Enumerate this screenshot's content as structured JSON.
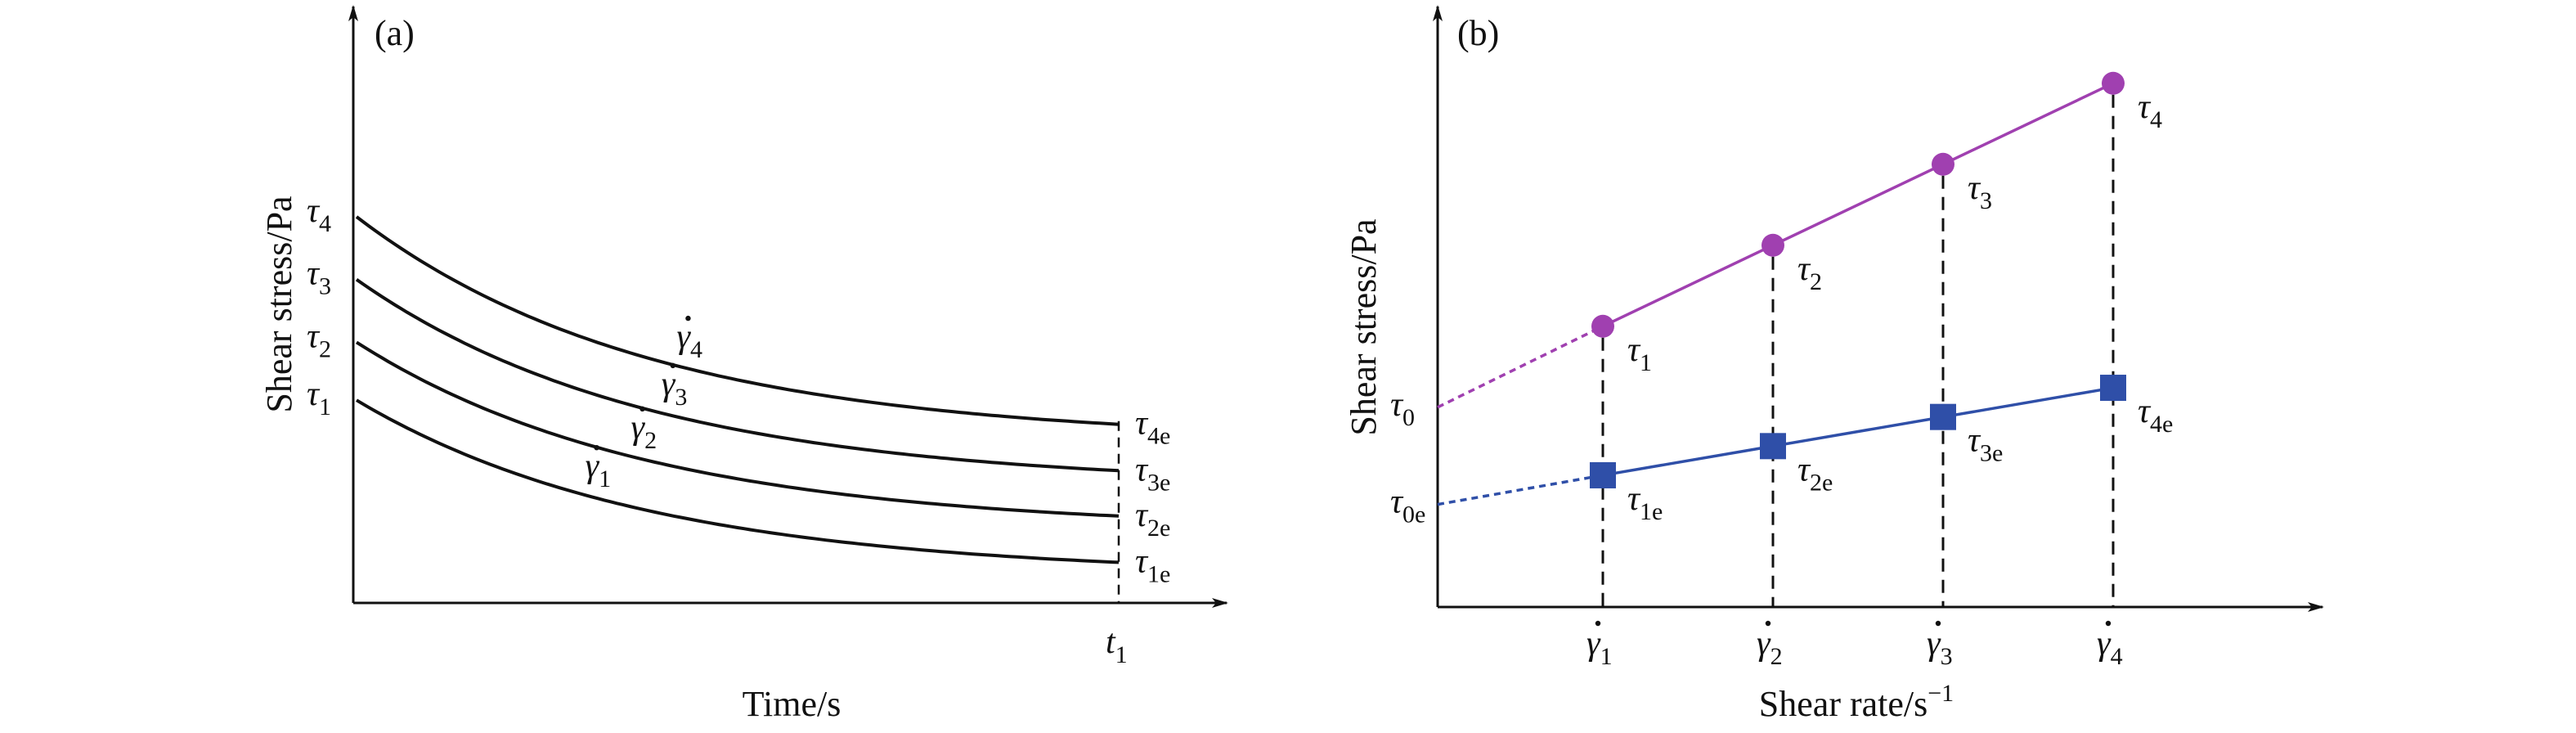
{
  "colors": {
    "axis": "#111111",
    "curve": "#111111",
    "magenta": "#a040b0",
    "blue": "#2f4fa8",
    "guide": "#111111"
  },
  "chart_data": [
    {
      "panel": "(a)",
      "type": "line",
      "xlabel": "Time/s",
      "ylabel": "Shear stress/Pa",
      "x_tick_label": "t",
      "x_tick_sub": "1",
      "y_tick_labels": [
        {
          "sym": "τ",
          "sub": "4"
        },
        {
          "sym": "τ",
          "sub": "3"
        },
        {
          "sym": "τ",
          "sub": "2"
        },
        {
          "sym": "τ",
          "sub": "1"
        }
      ],
      "series": [
        {
          "name": "γ̇4",
          "sub": "4",
          "start": 4.0,
          "end": 1.85,
          "end_label_sub": "4e"
        },
        {
          "name": "γ̇3",
          "sub": "3",
          "start": 3.35,
          "end": 1.37,
          "end_label_sub": "3e"
        },
        {
          "name": "γ̇2",
          "sub": "2",
          "start": 2.7,
          "end": 0.9,
          "end_label_sub": "2e"
        },
        {
          "name": "γ̇1",
          "sub": "1",
          "start": 2.1,
          "end": 0.42,
          "end_label_sub": "1e"
        }
      ],
      "decay_rate": 2.6,
      "xlim": [
        0,
        1.1
      ],
      "ylim": [
        0,
        5.0
      ]
    },
    {
      "panel": "(b)",
      "type": "scatter",
      "xlabel": "Shear rate/s",
      "xlabel_exp": "−1",
      "ylabel": "Shear stress/Pa",
      "x_tick_labels": [
        {
          "sym": "γ",
          "sub": "1"
        },
        {
          "sym": "γ",
          "sub": "2"
        },
        {
          "sym": "γ",
          "sub": "3"
        },
        {
          "sym": "γ",
          "sub": "4"
        }
      ],
      "y_intercept_labels": [
        {
          "sym": "τ",
          "sub": "0"
        },
        {
          "sym": "τ",
          "sub": "0e"
        }
      ],
      "x": [
        1,
        2,
        3,
        4
      ],
      "series": [
        {
          "name": "τ",
          "marker": "circle",
          "color": "#a040b0",
          "values": [
            2.6,
            3.35,
            4.1,
            4.85
          ],
          "intercept": 1.85,
          "point_subs": [
            "1",
            "2",
            "3",
            "4"
          ]
        },
        {
          "name": "τ",
          "marker": "square",
          "color": "#2f4fa8",
          "values": [
            1.22,
            1.49,
            1.76,
            2.03
          ],
          "intercept": 0.95,
          "point_subs": [
            "1e",
            "2e",
            "3e",
            "4e"
          ]
        }
      ],
      "xlim": [
        0,
        5.0
      ],
      "ylim": [
        0,
        5.5
      ]
    }
  ]
}
